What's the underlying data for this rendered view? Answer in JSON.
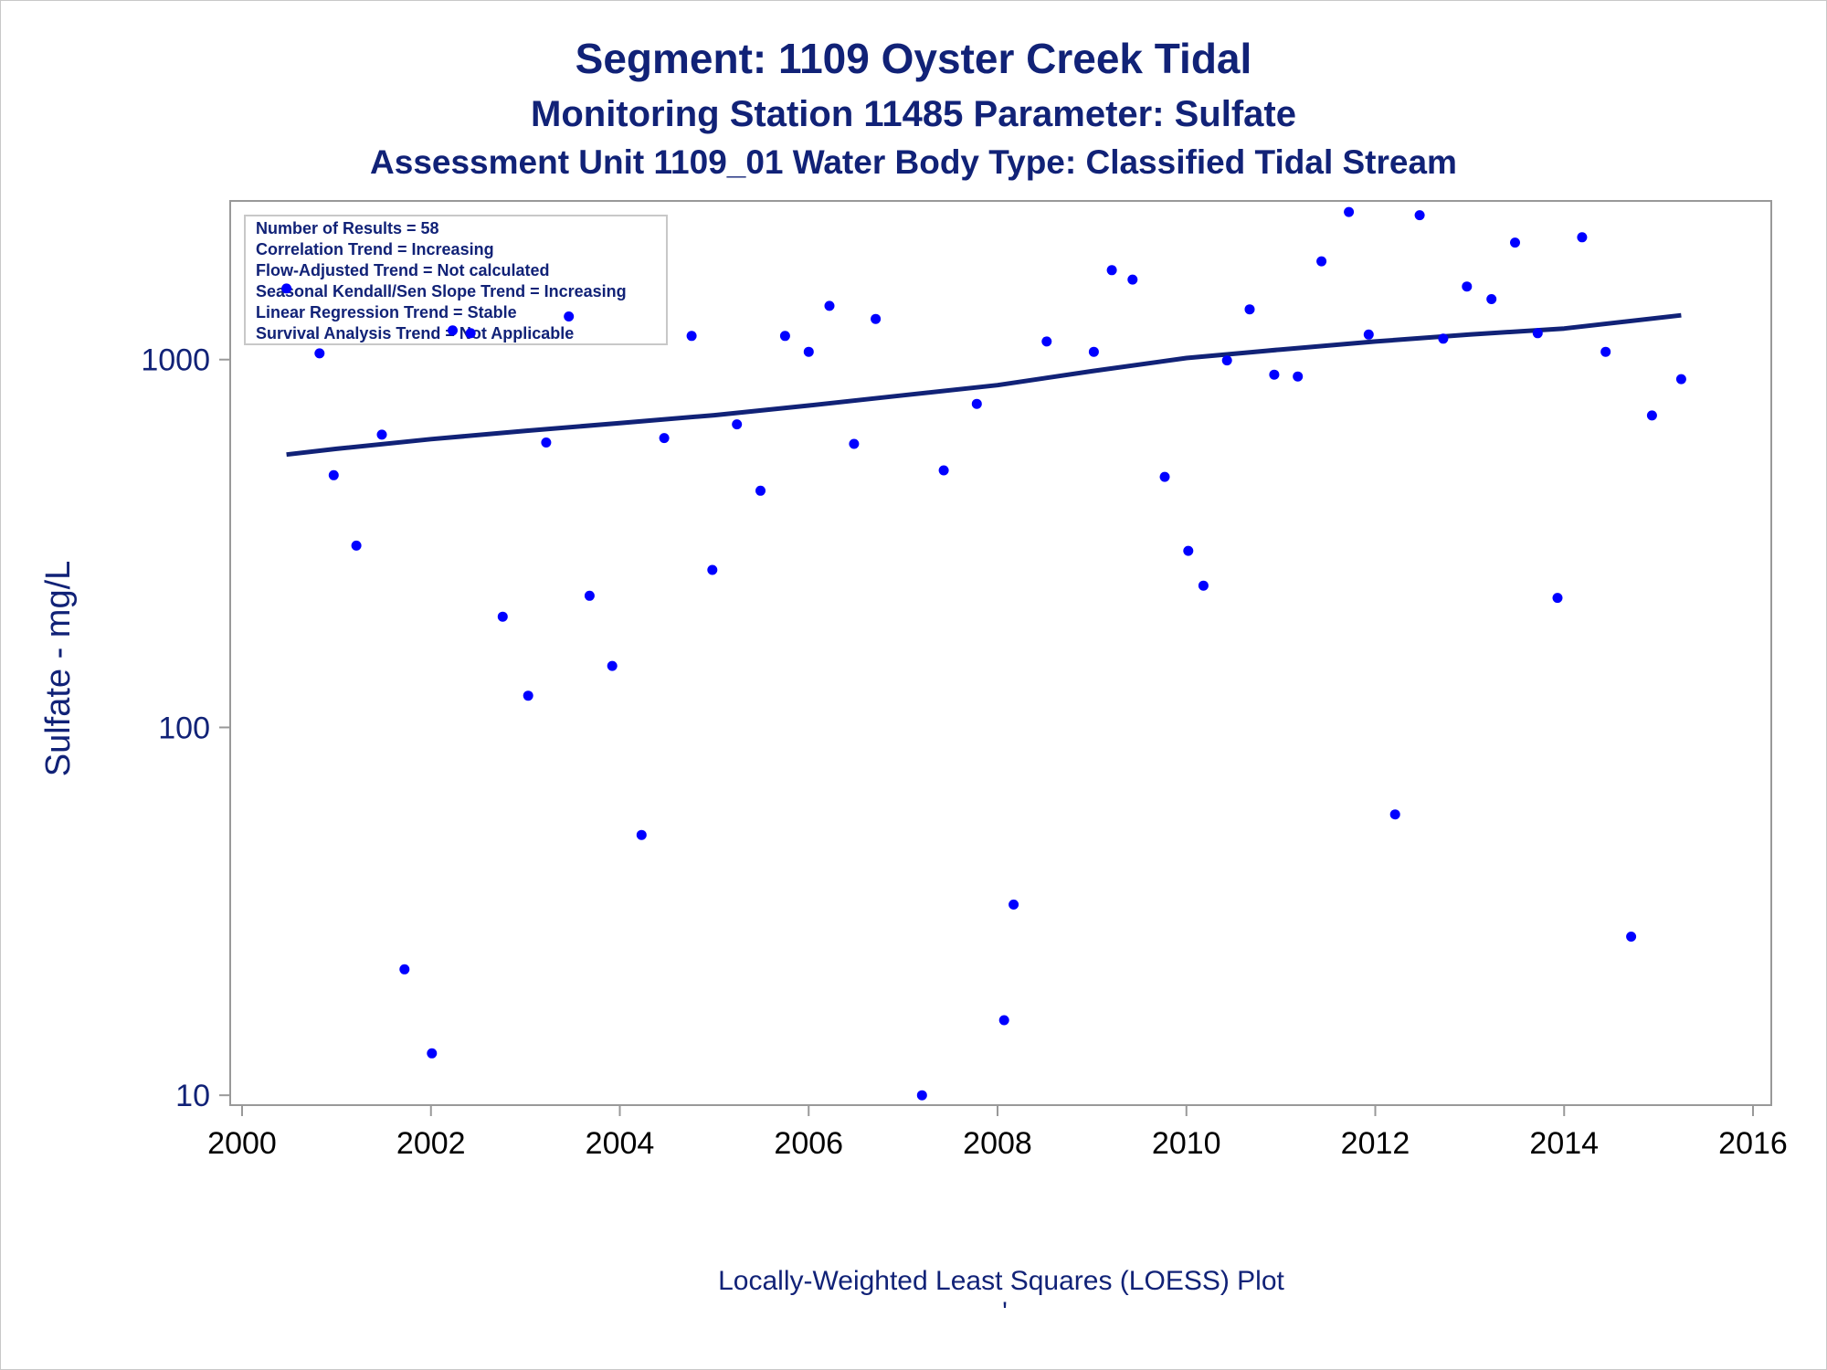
{
  "chart_data": {
    "type": "scatter",
    "title": "Segment: 1109  Oyster Creek Tidal",
    "subtitle": "Monitoring Station 11485 Parameter: Sulfate",
    "subtitle2": "Assessment Unit 1109_01   Water Body Type: Classified Tidal Stream",
    "ylabel": "Sulfate - mg/L",
    "xlabel": "",
    "footnote": "Locally-Weighted Least Squares (LOESS) Plot",
    "footnote_mark": "'",
    "y_scale": "log",
    "xlim": [
      2000,
      2016
    ],
    "ylim": [
      9.4,
      2700
    ],
    "x_ticks": [
      2000,
      2002,
      2004,
      2006,
      2008,
      2010,
      2012,
      2014,
      2016
    ],
    "x_tick_labels": [
      "2000",
      "2002",
      "2004",
      "2006",
      "2008",
      "2010",
      "2012",
      "2014",
      "2016"
    ],
    "y_ticks": [
      10,
      100,
      1000
    ],
    "y_tick_labels": [
      "10",
      "100",
      "1000"
    ],
    "grid": false,
    "legend": "none",
    "inset_box": {
      "placement": "top-left",
      "lines": [
        "Number of Results = 58",
        "Correlation Trend = Increasing",
        "Flow-Adjusted Trend = Not calculated",
        "Seasonal Kendall/Sen Slope Trend = Increasing",
        "Linear Regression Trend = Stable",
        "Survival Analysis Trend = Not Applicable"
      ]
    },
    "series": [
      {
        "type": "scatter",
        "color": "#0000ff",
        "points": [
          [
            2000.47,
            1560
          ],
          [
            2000.82,
            1040
          ],
          [
            2000.97,
            485
          ],
          [
            2001.21,
            312
          ],
          [
            2001.48,
            625
          ],
          [
            2001.72,
            22
          ],
          [
            2002.01,
            13
          ],
          [
            2002.23,
            1200
          ],
          [
            2002.42,
            1180
          ],
          [
            2002.76,
            200
          ],
          [
            2003.03,
            122
          ],
          [
            2003.22,
            595
          ],
          [
            2003.46,
            1310
          ],
          [
            2003.68,
            228
          ],
          [
            2003.92,
            147
          ],
          [
            2004.23,
            51
          ],
          [
            2004.47,
            612
          ],
          [
            2004.76,
            1160
          ],
          [
            2004.98,
            268
          ],
          [
            2005.24,
            667
          ],
          [
            2005.49,
            440
          ],
          [
            2005.75,
            1160
          ],
          [
            2006.0,
            1050
          ],
          [
            2006.22,
            1400
          ],
          [
            2006.48,
            590
          ],
          [
            2006.71,
            1290
          ],
          [
            2007.2,
            10
          ],
          [
            2007.43,
            500
          ],
          [
            2007.78,
            758
          ],
          [
            2008.07,
            16
          ],
          [
            2008.17,
            33
          ],
          [
            2008.52,
            1120
          ],
          [
            2009.02,
            1050
          ],
          [
            2009.21,
            1750
          ],
          [
            2009.43,
            1650
          ],
          [
            2009.77,
            480
          ],
          [
            2010.02,
            302
          ],
          [
            2010.18,
            243
          ],
          [
            2010.43,
            995
          ],
          [
            2010.67,
            1370
          ],
          [
            2010.93,
            910
          ],
          [
            2011.18,
            900
          ],
          [
            2011.43,
            1850
          ],
          [
            2011.72,
            2520
          ],
          [
            2011.93,
            1170
          ],
          [
            2012.21,
            58
          ],
          [
            2012.47,
            2470
          ],
          [
            2012.72,
            1140
          ],
          [
            2012.97,
            1580
          ],
          [
            2013.23,
            1460
          ],
          [
            2013.48,
            2080
          ],
          [
            2013.72,
            1180
          ],
          [
            2013.93,
            225
          ],
          [
            2014.19,
            2150
          ],
          [
            2014.44,
            1050
          ],
          [
            2014.71,
            27
          ],
          [
            2014.93,
            705
          ],
          [
            2015.24,
            885
          ]
        ]
      },
      {
        "type": "line",
        "color": "#112277",
        "points": [
          [
            2000.47,
            552
          ],
          [
            2001.0,
            572
          ],
          [
            2002.0,
            608
          ],
          [
            2003.0,
            640
          ],
          [
            2004.0,
            672
          ],
          [
            2005.0,
            706
          ],
          [
            2006.0,
            750
          ],
          [
            2007.0,
            800
          ],
          [
            2008.0,
            852
          ],
          [
            2009.0,
            930
          ],
          [
            2010.0,
            1010
          ],
          [
            2011.0,
            1065
          ],
          [
            2012.0,
            1120
          ],
          [
            2013.0,
            1170
          ],
          [
            2014.0,
            1215
          ],
          [
            2015.24,
            1320
          ]
        ]
      }
    ]
  }
}
